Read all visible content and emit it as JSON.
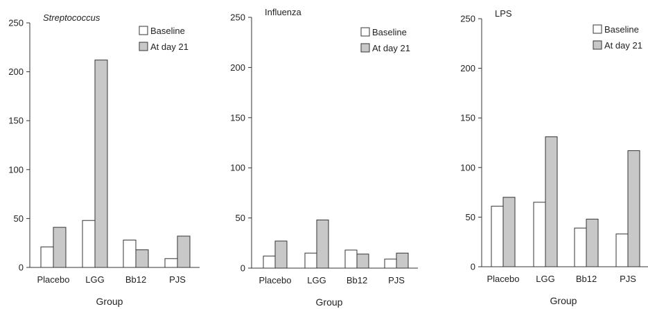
{
  "chart_data": [
    {
      "type": "bar",
      "title": "Streptococcus",
      "title_style": "italic",
      "xlabel": "Group",
      "ylabel": "",
      "categories": [
        "Placebo",
        "LGG",
        "Bb12",
        "PJS"
      ],
      "series": [
        {
          "name": "Baseline",
          "values": [
            21,
            48,
            28,
            9
          ],
          "color": "#ffffff"
        },
        {
          "name": "At day 21",
          "values": [
            41,
            212,
            18,
            32
          ],
          "color": "#c8c8c8"
        }
      ],
      "ylim": [
        0,
        250
      ],
      "yticks": [
        0,
        50,
        100,
        150,
        200,
        250
      ],
      "grid": false,
      "legend_position": "top-right"
    },
    {
      "type": "bar",
      "title": "Influenza",
      "title_style": "normal",
      "xlabel": "Group",
      "ylabel": "",
      "categories": [
        "Placebo",
        "LGG",
        "Bb12",
        "PJS"
      ],
      "series": [
        {
          "name": "Baseline",
          "values": [
            12,
            15,
            18,
            9
          ],
          "color": "#ffffff"
        },
        {
          "name": "At day 21",
          "values": [
            27,
            48,
            14,
            15
          ],
          "color": "#c8c8c8"
        }
      ],
      "ylim": [
        0,
        250
      ],
      "yticks": [
        0,
        50,
        100,
        150,
        200,
        250
      ],
      "grid": false,
      "legend_position": "top-right"
    },
    {
      "type": "bar",
      "title": "LPS",
      "title_style": "normal",
      "xlabel": "Group",
      "ylabel": "",
      "categories": [
        "Placebo",
        "LGG",
        "Bb12",
        "PJS"
      ],
      "series": [
        {
          "name": "Baseline",
          "values": [
            61,
            65,
            39,
            33
          ],
          "color": "#ffffff"
        },
        {
          "name": "At day 21",
          "values": [
            70,
            131,
            48,
            117
          ],
          "color": "#c8c8c8"
        }
      ],
      "ylim": [
        0,
        250
      ],
      "yticks": [
        0,
        50,
        100,
        150,
        200,
        250
      ],
      "grid": false,
      "legend_position": "top-right"
    }
  ]
}
